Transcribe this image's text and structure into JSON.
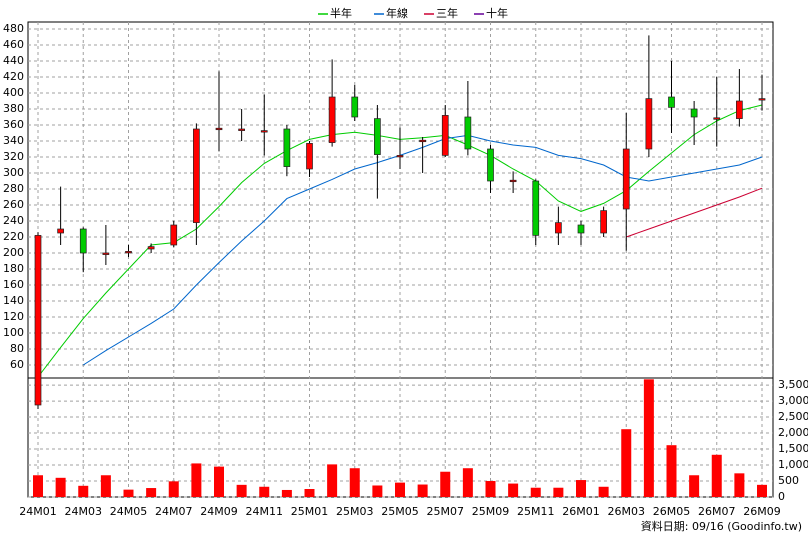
{
  "chart_data": {
    "type": "candlestick",
    "categories": [
      "24M01",
      null,
      "24M03",
      null,
      "24M05",
      null,
      "24M07",
      null,
      "24M09",
      null,
      "24M11",
      null,
      "25M01",
      null,
      "25M03",
      null,
      "25M05",
      null,
      "25M07",
      null,
      "25M09",
      null,
      "25M11",
      null,
      "26M01",
      null,
      "26M03",
      null,
      "26M05",
      null,
      "26M07",
      null,
      "26M09"
    ],
    "ohlc": {
      "open": [
        10,
        225,
        230,
        198,
        201,
        205,
        210,
        238,
        355,
        353,
        352,
        355,
        305,
        338,
        395,
        368,
        321,
        340,
        322,
        370,
        330,
        290,
        290,
        225,
        235,
        225,
        255,
        330,
        395,
        380,
        368,
        368,
        392
      ],
      "high": [
        226,
        283,
        232,
        235,
        210,
        212,
        240,
        362,
        427,
        380,
        398,
        360,
        340,
        442,
        410,
        385,
        357,
        345,
        385,
        415,
        335,
        302,
        292,
        258,
        240,
        258,
        375,
        472,
        440,
        390,
        420,
        430,
        423
      ],
      "low": [
        5,
        210,
        176,
        185,
        195,
        200,
        207,
        210,
        327,
        340,
        322,
        296,
        295,
        333,
        365,
        268,
        305,
        300,
        320,
        322,
        275,
        275,
        210,
        210,
        210,
        220,
        203,
        320,
        350,
        335,
        333,
        358,
        378
      ],
      "close": [
        222,
        230,
        200,
        200,
        202,
        208,
        235,
        355,
        356,
        355,
        353,
        308,
        337,
        395,
        370,
        323,
        322,
        341,
        372,
        330,
        290,
        291,
        222,
        238,
        225,
        253,
        330,
        393,
        382,
        370,
        369,
        390,
        393
      ],
      "up_color": "#ff0000",
      "down_color": "#00cc00",
      "flat_color": "#000000"
    },
    "lines": [
      {
        "name": "半年",
        "color": "#00cc00",
        "values": [
          45,
          82,
          118,
          150,
          180,
          210,
          213,
          230,
          258,
          288,
          312,
          328,
          342,
          348,
          351,
          347,
          342,
          344,
          347,
          335,
          322,
          305,
          290,
          265,
          252,
          262,
          278,
          302,
          325,
          348,
          365,
          378,
          385
        ]
      },
      {
        "name": "年線",
        "color": "#0066cc",
        "values": [
          null,
          null,
          60,
          78,
          95,
          112,
          130,
          160,
          188,
          215,
          240,
          268,
          280,
          292,
          305,
          313,
          322,
          332,
          343,
          347,
          340,
          335,
          332,
          322,
          318,
          310,
          295,
          290,
          295,
          300,
          305,
          310,
          320
        ]
      },
      {
        "name": "三年",
        "color": "#cc0033",
        "values": [
          null,
          null,
          null,
          null,
          null,
          null,
          null,
          null,
          null,
          null,
          null,
          null,
          null,
          null,
          null,
          null,
          null,
          null,
          null,
          null,
          null,
          null,
          null,
          null,
          null,
          null,
          220,
          230,
          240,
          250,
          260,
          270,
          281
        ]
      },
      {
        "name": "十年",
        "color": "#660099",
        "values": [
          null,
          null,
          null,
          null,
          null,
          null,
          null,
          null,
          null,
          null,
          null,
          null,
          null,
          null,
          null,
          null,
          null,
          null,
          null,
          null,
          null,
          null,
          null,
          null,
          null,
          null,
          null,
          null,
          null,
          null,
          null,
          null,
          null
        ]
      }
    ],
    "volume": {
      "color": "#ff0000",
      "values": [
        680,
        600,
        350,
        680,
        230,
        280,
        490,
        1050,
        950,
        380,
        320,
        220,
        250,
        1020,
        900,
        360,
        450,
        390,
        790,
        900,
        500,
        420,
        290,
        290,
        530,
        320,
        2120,
        3680,
        1620,
        680,
        1320,
        740,
        380
      ]
    },
    "ylim": [
      44,
      480
    ],
    "yticks": [
      60,
      80,
      100,
      120,
      140,
      160,
      180,
      200,
      220,
      240,
      260,
      280,
      300,
      320,
      340,
      360,
      380,
      400,
      420,
      440,
      460,
      480
    ],
    "y2lim": [
      0,
      3690
    ],
    "y2ticks": [
      0,
      500,
      {
        "value": 1000,
        "label": "1,000"
      },
      {
        "value": 1500,
        "label": "1,500"
      },
      {
        "value": 2000,
        "label": "2,000"
      },
      {
        "value": 2500,
        "label": "2,500"
      },
      {
        "value": 3000,
        "label": "3,000"
      },
      {
        "value": 3500,
        "label": "3,500"
      }
    ],
    "grid": true,
    "source": "資料日期: 09/16  (Goodinfo.tw)"
  }
}
